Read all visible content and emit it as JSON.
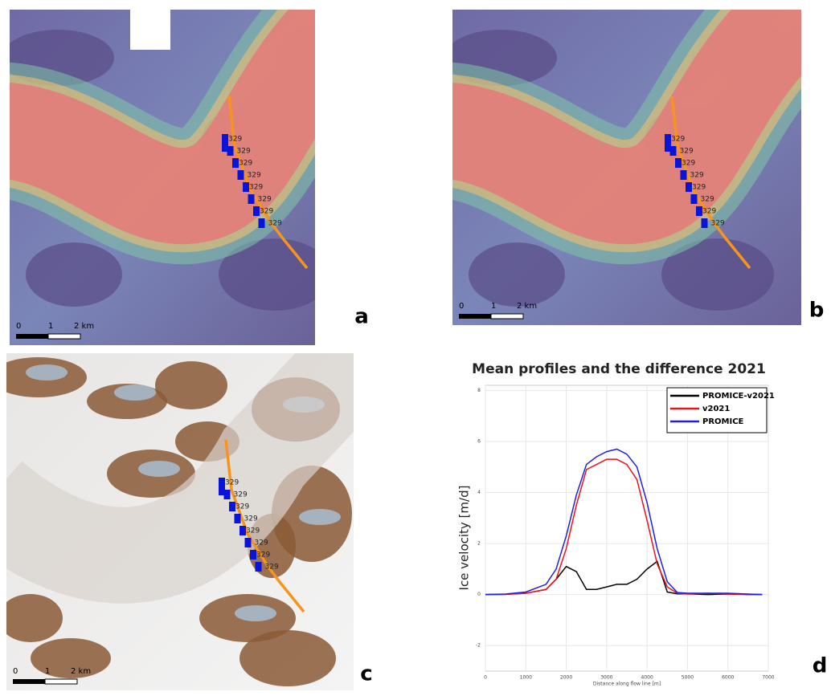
{
  "panels": [
    {
      "label": "a",
      "scale": [
        "0",
        "1",
        "2 km"
      ],
      "markers": [
        "329",
        "329",
        "329",
        "329",
        "329",
        "329",
        "329",
        "329"
      ]
    },
    {
      "label": "b",
      "scale": [
        "0",
        "1",
        "2 km"
      ],
      "markers": [
        "329",
        "329",
        "329",
        "329",
        "329",
        "329",
        "329",
        "329"
      ]
    },
    {
      "label": "c",
      "scale": [
        "0",
        "1",
        "2 km"
      ],
      "markers": [
        "329",
        "329",
        "329",
        "329",
        "329",
        "329",
        "329",
        "329"
      ]
    }
  ],
  "chart_data": {
    "type": "line",
    "panel_label": "d",
    "title": "Mean profiles and the difference   2021",
    "y_label": "Ice velocity [m/d]",
    "x_label": "Distance along flow line [m]",
    "x": [
      0,
      500,
      1000,
      1500,
      1750,
      2000,
      2250,
      2500,
      2750,
      3000,
      3250,
      3500,
      3750,
      4000,
      4250,
      4500,
      4750,
      5000,
      5500,
      6000,
      6500,
      6850
    ],
    "series": [
      {
        "name": "PROMICE-v2021",
        "color": "#000000",
        "values": [
          0,
          0.01,
          0.05,
          0.2,
          0.6,
          1.1,
          0.9,
          0.2,
          0.2,
          0.3,
          0.4,
          0.4,
          0.6,
          1.0,
          1.3,
          0.1,
          0.03,
          0.03,
          0,
          0.02,
          0,
          0
        ]
      },
      {
        "name": "v2021",
        "color": "#e8131b",
        "values": [
          0,
          0.01,
          0.05,
          0.2,
          0.6,
          1.8,
          3.5,
          4.9,
          5.1,
          5.3,
          5.3,
          5.1,
          4.5,
          2.9,
          1.2,
          0.3,
          0.05,
          0.02,
          0.05,
          0.02,
          0.01,
          0
        ]
      },
      {
        "name": "PROMICE",
        "color": "#1f1fe0",
        "values": [
          0,
          0.02,
          0.1,
          0.4,
          1.0,
          2.3,
          3.9,
          5.1,
          5.4,
          5.6,
          5.7,
          5.5,
          5.0,
          3.6,
          1.8,
          0.5,
          0.08,
          0.05,
          0.05,
          0.05,
          0.02,
          0
        ]
      }
    ],
    "xlim": [
      0,
      7000
    ],
    "xticks": [
      0,
      1000,
      2000,
      3000,
      4000,
      5000,
      6000,
      7000
    ],
    "ylim": [
      -3,
      8.2
    ],
    "yticks": [
      -2,
      0,
      2,
      4,
      6,
      8
    ],
    "grid": true,
    "legend": "upper right"
  }
}
